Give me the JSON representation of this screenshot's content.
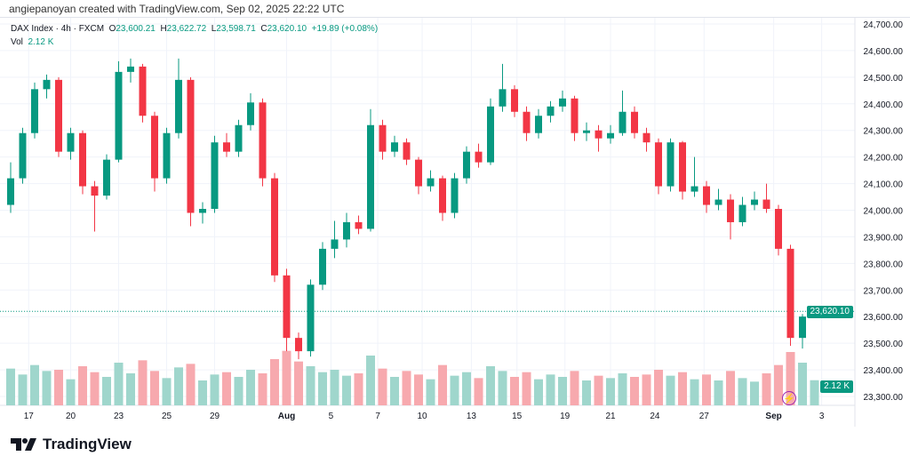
{
  "credit": "angiepanoyan created with TradingView.com, Sep 02, 2025 22:22 UTC",
  "legend": {
    "symbol": "DAX Index · 4h · FXCM",
    "o_label": "O",
    "o": "23,600.21",
    "h_label": "H",
    "h": "23,622.72",
    "l_label": "L",
    "l": "23,598.71",
    "c_label": "C",
    "c": "23,620.10",
    "change": "+19.89 (+0.08%)",
    "vol_label": "Vol",
    "vol": "2.12 K"
  },
  "last_price_tag": "23,620.10",
  "volume_tag": "2.12 K",
  "logo": "TradingView",
  "colors": {
    "up": "#089981",
    "down": "#f23645",
    "vol_up": "#9fd6cc",
    "vol_down": "#f7a9ae"
  },
  "chart_data": {
    "type": "candlestick",
    "title": "DAX Index · 4h · FXCM",
    "ylim": [
      23300,
      24700
    ],
    "y_ticks": [
      "24,700.00",
      "24,600.00",
      "24,500.00",
      "24,400.00",
      "24,300.00",
      "24,200.00",
      "24,100.00",
      "24,000.00",
      "23,900.00",
      "23,800.00",
      "23,700.00",
      "23,600.00",
      "23,500.00",
      "23,400.00",
      "23,300.00"
    ],
    "x_ticks": [
      {
        "label": "17",
        "i": 1.5
      },
      {
        "label": "20",
        "i": 5
      },
      {
        "label": "23",
        "i": 9
      },
      {
        "label": "25",
        "i": 13
      },
      {
        "label": "29",
        "i": 17
      },
      {
        "label": "Aug",
        "i": 23
      },
      {
        "label": "5",
        "i": 26.7
      },
      {
        "label": "7",
        "i": 30.6
      },
      {
        "label": "10",
        "i": 34.3
      },
      {
        "label": "13",
        "i": 38.4
      },
      {
        "label": "15",
        "i": 42.2
      },
      {
        "label": "19",
        "i": 46.2
      },
      {
        "label": "21",
        "i": 50
      },
      {
        "label": "24",
        "i": 53.7
      },
      {
        "label": "27",
        "i": 57.8
      },
      {
        "label": "Sep",
        "i": 63.6
      },
      {
        "label": "3",
        "i": 67.6
      }
    ],
    "candles_ohlc": [
      [
        24020,
        24180,
        23990,
        24120
      ],
      [
        24120,
        24310,
        24100,
        24290
      ],
      [
        24290,
        24480,
        24270,
        24455
      ],
      [
        24455,
        24510,
        24420,
        24490
      ],
      [
        24490,
        24500,
        24200,
        24220
      ],
      [
        24220,
        24310,
        24190,
        24290
      ],
      [
        24290,
        24300,
        24060,
        24090
      ],
      [
        24090,
        24110,
        23920,
        24055
      ],
      [
        24055,
        24210,
        24040,
        24190
      ],
      [
        24190,
        24560,
        24180,
        24520
      ],
      [
        24520,
        24570,
        24480,
        24540
      ],
      [
        24540,
        24550,
        24330,
        24355
      ],
      [
        24355,
        24370,
        24070,
        24120
      ],
      [
        24120,
        24310,
        24100,
        24290
      ],
      [
        24290,
        24570,
        24270,
        24490
      ],
      [
        24490,
        24500,
        23940,
        23990
      ],
      [
        23990,
        24030,
        23950,
        24005
      ],
      [
        24005,
        24280,
        23990,
        24255
      ],
      [
        24255,
        24290,
        24200,
        24220
      ],
      [
        24220,
        24340,
        24200,
        24320
      ],
      [
        24320,
        24440,
        24300,
        24405
      ],
      [
        24405,
        24420,
        24090,
        24120
      ],
      [
        24120,
        24140,
        23730,
        23755
      ],
      [
        23755,
        23780,
        23470,
        23520
      ],
      [
        23520,
        23540,
        23440,
        23470
      ],
      [
        23470,
        23740,
        23450,
        23720
      ],
      [
        23720,
        23880,
        23700,
        23855
      ],
      [
        23855,
        23960,
        23820,
        23890
      ],
      [
        23890,
        23990,
        23860,
        23955
      ],
      [
        23955,
        23980,
        23910,
        23930
      ],
      [
        23930,
        24380,
        23920,
        24320
      ],
      [
        24320,
        24340,
        24190,
        24220
      ],
      [
        24220,
        24280,
        24200,
        24255
      ],
      [
        24255,
        24270,
        24170,
        24190
      ],
      [
        24190,
        24200,
        24060,
        24090
      ],
      [
        24090,
        24150,
        24070,
        24120
      ],
      [
        24120,
        24130,
        23960,
        23990
      ],
      [
        23990,
        24140,
        23970,
        24120
      ],
      [
        24120,
        24240,
        24100,
        24220
      ],
      [
        24220,
        24250,
        24160,
        24180
      ],
      [
        24180,
        24420,
        24170,
        24390
      ],
      [
        24390,
        24550,
        24370,
        24455
      ],
      [
        24455,
        24470,
        24350,
        24370
      ],
      [
        24370,
        24390,
        24260,
        24290
      ],
      [
        24290,
        24380,
        24270,
        24355
      ],
      [
        24355,
        24410,
        24330,
        24390
      ],
      [
        24390,
        24450,
        24370,
        24420
      ],
      [
        24420,
        24430,
        24260,
        24290
      ],
      [
        24290,
        24330,
        24260,
        24300
      ],
      [
        24300,
        24320,
        24220,
        24270
      ],
      [
        24270,
        24320,
        24250,
        24290
      ],
      [
        24290,
        24450,
        24280,
        24370
      ],
      [
        24370,
        24390,
        24270,
        24290
      ],
      [
        24290,
        24310,
        24220,
        24255
      ],
      [
        24255,
        24270,
        24060,
        24090
      ],
      [
        24090,
        24270,
        24070,
        24255
      ],
      [
        24255,
        24260,
        24040,
        24070
      ],
      [
        24070,
        24200,
        24050,
        24090
      ],
      [
        24090,
        24110,
        23990,
        24020
      ],
      [
        24020,
        24080,
        24000,
        24040
      ],
      [
        24040,
        24060,
        23890,
        23955
      ],
      [
        23955,
        24050,
        23940,
        24020
      ],
      [
        24020,
        24070,
        24000,
        24040
      ],
      [
        24040,
        24100,
        23990,
        24005
      ],
      [
        24005,
        24020,
        23830,
        23855
      ],
      [
        23855,
        23870,
        23490,
        23520
      ],
      [
        23520,
        23610,
        23480,
        23600.21
      ],
      [
        23600.21,
        23622.72,
        23598.71,
        23620.1
      ]
    ],
    "volume_k": [
      3.1,
      2.6,
      3.4,
      2.9,
      3.0,
      2.2,
      3.3,
      2.8,
      2.4,
      3.6,
      2.7,
      3.8,
      2.9,
      2.3,
      3.2,
      3.5,
      2.1,
      2.6,
      2.8,
      2.4,
      3.0,
      2.7,
      3.9,
      4.6,
      3.7,
      3.3,
      2.8,
      3.0,
      2.5,
      2.7,
      4.2,
      3.1,
      2.4,
      2.9,
      2.6,
      2.2,
      3.4,
      2.5,
      2.8,
      2.3,
      3.3,
      2.9,
      2.4,
      2.8,
      2.2,
      2.6,
      2.4,
      2.9,
      2.1,
      2.5,
      2.3,
      2.7,
      2.4,
      2.6,
      3.0,
      2.5,
      2.8,
      2.2,
      2.6,
      2.1,
      2.9,
      2.3,
      2.0,
      2.7,
      3.4,
      4.5,
      3.6,
      2.12
    ],
    "volume_max_k": 6
  }
}
